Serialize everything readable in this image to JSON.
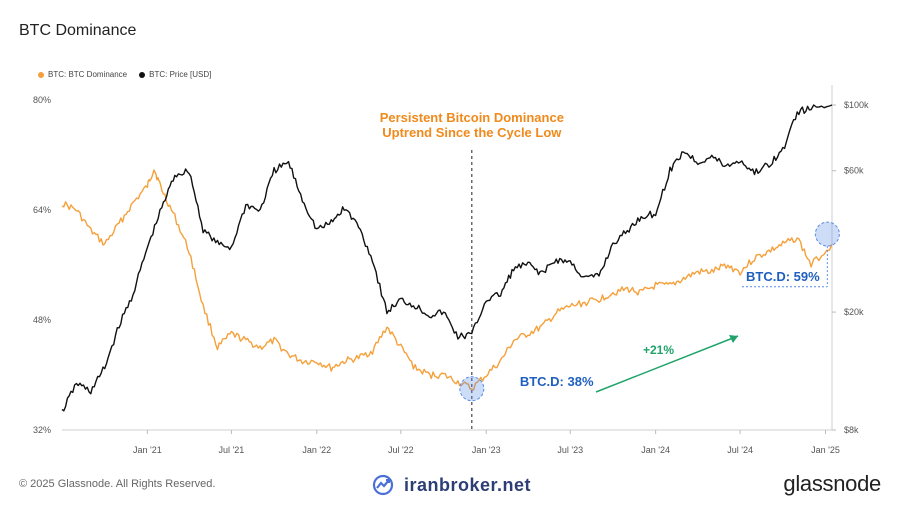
{
  "title": "BTC Dominance",
  "footer": {
    "copyright": "© 2025 Glassnode. All Rights Reserved.",
    "watermark": "iranbroker.net",
    "brand": "glassnode"
  },
  "colors": {
    "dominance": "#f5a03a",
    "price": "#111111",
    "annotation_blue": "#1f5fbf",
    "annotation_green": "#1fa36a",
    "annotation_orange": "#f08a1c"
  },
  "chart_data": {
    "type": "line",
    "legend": [
      "BTC: BTC Dominance",
      "BTC: Price [USD]"
    ],
    "legend_position": "top-left",
    "grid": false,
    "x_ticks": [
      "Jan '21",
      "Jul '21",
      "Jan '22",
      "Jul '22",
      "Jan '23",
      "Jul '23",
      "Jan '24",
      "Jul '24",
      "Jan '25"
    ],
    "left_axis": {
      "ticks": [
        "32%",
        "48%",
        "64%",
        "80%"
      ],
      "range": [
        32,
        80
      ]
    },
    "right_axis": {
      "scale": "log",
      "ticks": [
        "$8k",
        "$20k",
        "$60k",
        "$100k"
      ],
      "range": [
        8000,
        100000
      ]
    },
    "x_range": [
      "2020-07-01",
      "2025-01-15"
    ],
    "series": [
      {
        "name": "BTC: BTC Dominance",
        "axis": "left",
        "points": [
          [
            "2020-07-01",
            65
          ],
          [
            "2020-08-01",
            64
          ],
          [
            "2020-09-01",
            61
          ],
          [
            "2020-10-01",
            59
          ],
          [
            "2020-11-01",
            62
          ],
          [
            "2020-12-01",
            65
          ],
          [
            "2021-01-01",
            67.5
          ],
          [
            "2021-01-15",
            70
          ],
          [
            "2021-02-01",
            67
          ],
          [
            "2021-03-01",
            63
          ],
          [
            "2021-04-01",
            58
          ],
          [
            "2021-05-01",
            50
          ],
          [
            "2021-06-01",
            44
          ],
          [
            "2021-07-01",
            46
          ],
          [
            "2021-08-01",
            45
          ],
          [
            "2021-09-01",
            44
          ],
          [
            "2021-10-01",
            45
          ],
          [
            "2021-11-01",
            43
          ],
          [
            "2021-12-01",
            42
          ],
          [
            "2022-01-01",
            42
          ],
          [
            "2022-02-01",
            41
          ],
          [
            "2022-03-01",
            42
          ],
          [
            "2022-04-01",
            42.5
          ],
          [
            "2022-05-01",
            43.5
          ],
          [
            "2022-06-01",
            47
          ],
          [
            "2022-07-01",
            44
          ],
          [
            "2022-08-01",
            41
          ],
          [
            "2022-09-01",
            40
          ],
          [
            "2022-10-01",
            40
          ],
          [
            "2022-11-01",
            39
          ],
          [
            "2022-12-01",
            38
          ],
          [
            "2023-01-01",
            40
          ],
          [
            "2023-02-01",
            42
          ],
          [
            "2023-03-01",
            45
          ],
          [
            "2023-04-01",
            46
          ],
          [
            "2023-05-01",
            47
          ],
          [
            "2023-06-01",
            49
          ],
          [
            "2023-07-01",
            50
          ],
          [
            "2023-08-01",
            50.5
          ],
          [
            "2023-09-01",
            51
          ],
          [
            "2023-10-01",
            52
          ],
          [
            "2023-11-01",
            52.5
          ],
          [
            "2023-12-01",
            52
          ],
          [
            "2024-01-01",
            53
          ],
          [
            "2024-02-01",
            53
          ],
          [
            "2024-03-01",
            54
          ],
          [
            "2024-04-01",
            55
          ],
          [
            "2024-05-01",
            55
          ],
          [
            "2024-06-01",
            56
          ],
          [
            "2024-07-01",
            55
          ],
          [
            "2024-08-01",
            57
          ],
          [
            "2024-09-01",
            58
          ],
          [
            "2024-10-01",
            59
          ],
          [
            "2024-11-01",
            60
          ],
          [
            "2024-12-01",
            56
          ],
          [
            "2025-01-15",
            59
          ]
        ]
      },
      {
        "name": "BTC: Price [USD]",
        "axis": "right",
        "points": [
          [
            "2020-07-01",
            9200
          ],
          [
            "2020-08-01",
            11500
          ],
          [
            "2020-09-01",
            10800
          ],
          [
            "2020-10-01",
            13000
          ],
          [
            "2020-11-01",
            18000
          ],
          [
            "2020-12-01",
            23000
          ],
          [
            "2021-01-01",
            33000
          ],
          [
            "2021-02-01",
            45000
          ],
          [
            "2021-03-01",
            58000
          ],
          [
            "2021-04-01",
            60000
          ],
          [
            "2021-05-01",
            38000
          ],
          [
            "2021-06-01",
            34000
          ],
          [
            "2021-07-01",
            33000
          ],
          [
            "2021-08-01",
            46000
          ],
          [
            "2021-09-01",
            44000
          ],
          [
            "2021-10-01",
            60000
          ],
          [
            "2021-11-01",
            64000
          ],
          [
            "2021-12-01",
            48000
          ],
          [
            "2022-01-01",
            38000
          ],
          [
            "2022-02-01",
            40000
          ],
          [
            "2022-03-01",
            45000
          ],
          [
            "2022-04-01",
            39000
          ],
          [
            "2022-05-01",
            30000
          ],
          [
            "2022-06-01",
            20000
          ],
          [
            "2022-07-01",
            22000
          ],
          [
            "2022-08-01",
            21000
          ],
          [
            "2022-09-01",
            19500
          ],
          [
            "2022-10-01",
            20000
          ],
          [
            "2022-11-01",
            16500
          ],
          [
            "2022-12-01",
            16800
          ],
          [
            "2023-01-01",
            22000
          ],
          [
            "2023-02-01",
            23000
          ],
          [
            "2023-03-01",
            28000
          ],
          [
            "2023-04-01",
            29000
          ],
          [
            "2023-05-01",
            27000
          ],
          [
            "2023-06-01",
            30000
          ],
          [
            "2023-07-01",
            29500
          ],
          [
            "2023-08-01",
            26000
          ],
          [
            "2023-09-01",
            26500
          ],
          [
            "2023-10-01",
            34000
          ],
          [
            "2023-11-01",
            37500
          ],
          [
            "2023-12-01",
            42000
          ],
          [
            "2024-01-01",
            43000
          ],
          [
            "2024-02-01",
            60000
          ],
          [
            "2024-03-01",
            70000
          ],
          [
            "2024-04-01",
            64000
          ],
          [
            "2024-05-01",
            67000
          ],
          [
            "2024-06-01",
            62000
          ],
          [
            "2024-07-01",
            65000
          ],
          [
            "2024-08-01",
            59000
          ],
          [
            "2024-09-01",
            63000
          ],
          [
            "2024-10-01",
            70000
          ],
          [
            "2024-11-01",
            95000
          ],
          [
            "2024-12-01",
            97000
          ],
          [
            "2025-01-15",
            100000
          ]
        ]
      }
    ],
    "annotations": {
      "headline": [
        "Persistent Bitcoin Dominance",
        "Uptrend Since the Cycle Low"
      ],
      "cycle_low_date": "2022-12-01",
      "low_label": "BTC.D: 38%",
      "low_value": 38,
      "high_label": "BTC.D: 59%",
      "high_value": 59,
      "change_label": "+21%"
    }
  }
}
